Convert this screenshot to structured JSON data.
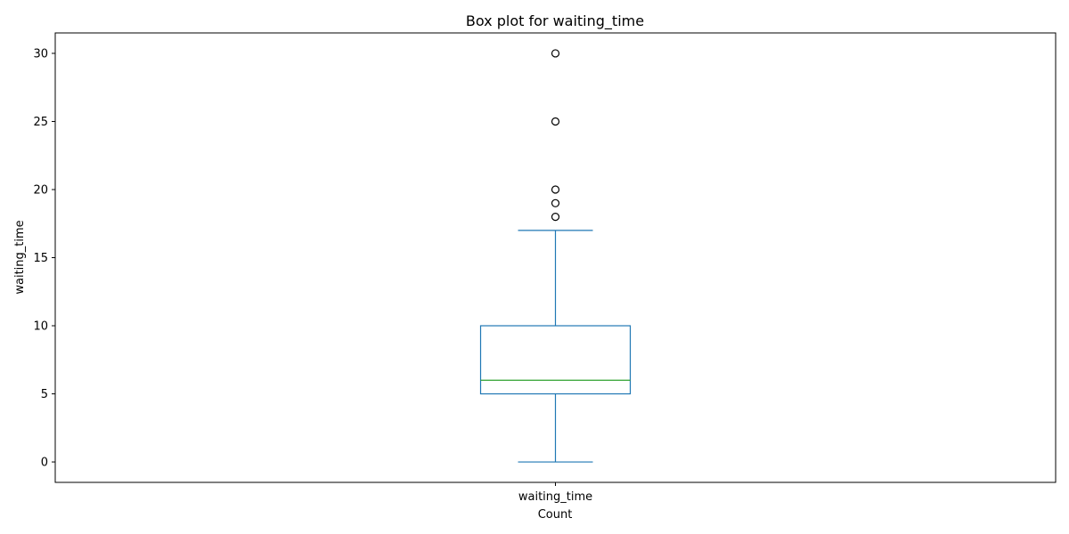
{
  "chart_data": {
    "type": "box",
    "title": "Box plot for waiting_time",
    "xlabel": "Count",
    "ylabel": "waiting_time",
    "categories": [
      "waiting_time"
    ],
    "ylim": [
      -1.5,
      31.5
    ],
    "yticks": [
      0,
      5,
      10,
      15,
      20,
      25,
      30
    ],
    "ytick_labels": [
      "0",
      "5",
      "10",
      "15",
      "20",
      "25",
      "30"
    ],
    "grid": false,
    "box": {
      "whisker_low": 0,
      "q1": 5,
      "median": 6,
      "q3": 10,
      "whisker_high": 17
    },
    "outliers": [
      18,
      19,
      20,
      25,
      30
    ],
    "colors": {
      "box": "#1f77b4",
      "median": "#2ca02c",
      "outlier_edge": "#000000"
    }
  }
}
